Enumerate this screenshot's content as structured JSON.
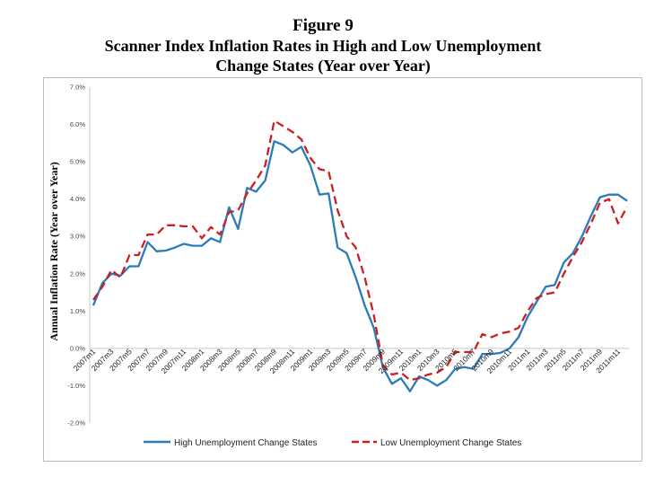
{
  "figure": {
    "number": "Figure 9",
    "title_line1": "Scanner Index Inflation Rates in High and Low Unemployment",
    "title_line2": "Change States (Year over Year)"
  },
  "chart_data": {
    "type": "line",
    "ylabel": "Annual Inflation Rate (Year over Year)",
    "xlabel": "",
    "ylim": [
      -2.0,
      7.0
    ],
    "yticks": [
      7.0,
      6.0,
      5.0,
      4.0,
      3.0,
      2.0,
      1.0,
      0.0,
      -1.0,
      -2.0
    ],
    "ytick_labels": [
      "7.0%",
      "6.0%",
      "5.0%",
      "4.0%",
      "3.0%",
      "2.0%",
      "1.0%",
      "0.0%",
      "-1.0%",
      "-2.0%"
    ],
    "xtick_labels": [
      "2007m1",
      "2007m3",
      "2007m5",
      "2007m7",
      "2007m9",
      "2007m11",
      "2008m1",
      "2008m3",
      "2008m5",
      "2008m7",
      "2008m9",
      "2008m11",
      "2009m1",
      "2009m3",
      "2009m5",
      "2009m7",
      "2009m9",
      "2009m11",
      "2010m1",
      "2010m3",
      "2010m5",
      "2010m7",
      "2010m9",
      "2010m11",
      "2011m1",
      "2011m3",
      "2011m5",
      "2011m7",
      "2011m9",
      "2011m11"
    ],
    "grid": false,
    "legend_position": "bottom",
    "series": [
      {
        "name": "High Unemployment Change States",
        "color": "#2b7bb9",
        "style": "solid",
        "values": [
          1.15,
          1.75,
          2.0,
          1.95,
          2.2,
          2.2,
          2.85,
          2.6,
          2.62,
          2.7,
          2.8,
          2.75,
          2.75,
          2.95,
          2.85,
          3.78,
          3.2,
          4.3,
          4.2,
          4.5,
          5.55,
          5.45,
          5.25,
          5.4,
          4.9,
          4.12,
          4.15,
          2.7,
          2.55,
          1.9,
          1.15,
          0.55,
          -0.5,
          -0.95,
          -0.8,
          -1.15,
          -0.75,
          -0.85,
          -1.0,
          -0.85,
          -0.55,
          -0.5,
          -0.55,
          -0.15,
          -0.15,
          -0.12,
          0.0,
          0.3,
          0.85,
          1.25,
          1.65,
          1.7,
          2.3,
          2.55,
          3.0,
          3.55,
          4.05,
          4.12,
          4.12,
          3.95
        ]
      },
      {
        "name": "Low Unemployment Change States",
        "color": "#cc1f1f",
        "style": "dashed",
        "values": [
          1.3,
          1.65,
          2.1,
          1.9,
          2.5,
          2.5,
          3.05,
          3.05,
          3.3,
          3.3,
          3.27,
          3.27,
          2.95,
          3.25,
          3.05,
          3.65,
          3.7,
          4.15,
          4.5,
          4.9,
          6.1,
          5.95,
          5.8,
          5.6,
          5.1,
          4.8,
          4.75,
          3.7,
          3.0,
          2.7,
          1.9,
          0.9,
          -0.45,
          -0.7,
          -0.65,
          -0.85,
          -0.8,
          -0.7,
          -0.65,
          -0.5,
          -0.1,
          -0.1,
          -0.1,
          0.38,
          0.3,
          0.4,
          0.45,
          0.55,
          1.0,
          1.35,
          1.45,
          1.5,
          2.0,
          2.45,
          2.85,
          3.35,
          3.9,
          4.0,
          3.35,
          3.8
        ]
      }
    ]
  }
}
